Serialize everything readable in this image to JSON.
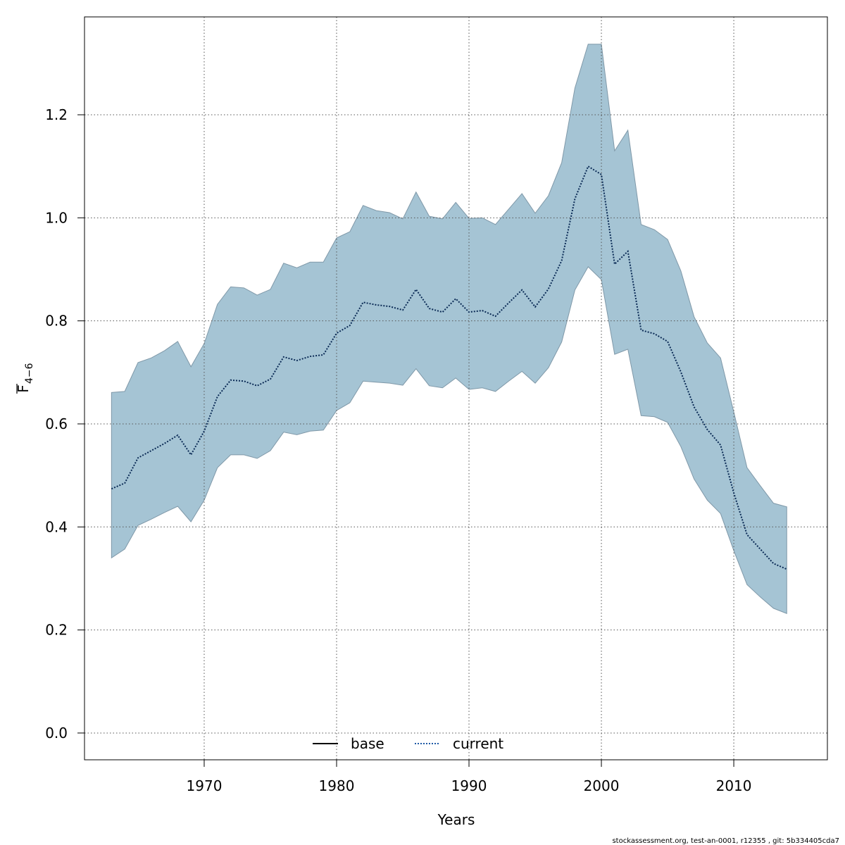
{
  "chart_data": {
    "type": "band_line",
    "xlabel": "Years",
    "ylabel": "F",
    "ylabel_sub": "4−6",
    "footer": "stockassessment.org, test-an-0001, r12355 , git: 5b334405cda7",
    "x": [
      1963,
      1964,
      1965,
      1966,
      1967,
      1968,
      1969,
      1970,
      1971,
      1972,
      1973,
      1974,
      1975,
      1976,
      1977,
      1978,
      1979,
      1980,
      1981,
      1982,
      1983,
      1984,
      1985,
      1986,
      1987,
      1988,
      1989,
      1990,
      1991,
      1992,
      1993,
      1994,
      1995,
      1996,
      1997,
      1998,
      1999,
      2000,
      2001,
      2002,
      2003,
      2004,
      2005,
      2006,
      2007,
      2008,
      2009,
      2010,
      2011,
      2012,
      2013,
      2014
    ],
    "series": [
      {
        "name": "current",
        "color": "#0a2a55",
        "values": [
          0.474,
          0.485,
          0.534,
          0.548,
          0.562,
          0.578,
          0.54,
          0.586,
          0.653,
          0.685,
          0.683,
          0.674,
          0.687,
          0.73,
          0.723,
          0.731,
          0.734,
          0.776,
          0.791,
          0.836,
          0.831,
          0.828,
          0.821,
          0.861,
          0.824,
          0.817,
          0.843,
          0.817,
          0.82,
          0.809,
          0.835,
          0.86,
          0.827,
          0.862,
          0.917,
          1.037,
          1.1,
          1.084,
          0.91,
          0.935,
          0.782,
          0.775,
          0.76,
          0.701,
          0.633,
          0.589,
          0.559,
          0.466,
          0.385,
          0.357,
          0.329,
          0.318
        ],
        "upper": [
          0.661,
          0.663,
          0.719,
          0.728,
          0.742,
          0.76,
          0.711,
          0.756,
          0.832,
          0.866,
          0.864,
          0.85,
          0.861,
          0.912,
          0.903,
          0.914,
          0.914,
          0.961,
          0.973,
          1.024,
          1.014,
          1.01,
          0.998,
          1.05,
          1.003,
          0.998,
          1.03,
          0.999,
          1.0,
          0.987,
          1.017,
          1.047,
          1.009,
          1.043,
          1.107,
          1.252,
          1.337,
          1.337,
          1.13,
          1.17,
          0.987,
          0.977,
          0.958,
          0.897,
          0.808,
          0.757,
          0.728,
          0.623,
          0.515,
          0.48,
          0.446,
          0.439
        ],
        "lower": [
          0.34,
          0.357,
          0.403,
          0.415,
          0.428,
          0.44,
          0.41,
          0.452,
          0.515,
          0.54,
          0.54,
          0.533,
          0.548,
          0.584,
          0.579,
          0.586,
          0.588,
          0.626,
          0.641,
          0.683,
          0.681,
          0.679,
          0.675,
          0.707,
          0.674,
          0.67,
          0.689,
          0.667,
          0.67,
          0.663,
          0.683,
          0.702,
          0.679,
          0.709,
          0.759,
          0.86,
          0.905,
          0.88,
          0.735,
          0.745,
          0.616,
          0.614,
          0.603,
          0.556,
          0.493,
          0.452,
          0.426,
          0.354,
          0.288,
          0.264,
          0.242,
          0.232
        ],
        "band_color": "#a5c4d4"
      }
    ],
    "legend": [
      {
        "name": "base",
        "color": "#000000"
      },
      {
        "name": "current",
        "color": "#1f5aa6"
      }
    ],
    "xlim": [
      1960.96,
      2017.07
    ],
    "xticks": [
      1970,
      1980,
      1990,
      2000,
      2010
    ],
    "ylim": [
      -0.052,
      1.39
    ],
    "yticks": [
      {
        "value": 0,
        "label": "0.0"
      },
      0.2,
      0.4,
      0.6,
      0.8,
      {
        "value": 1,
        "label": "1.0"
      },
      1.2
    ],
    "grid": true
  }
}
